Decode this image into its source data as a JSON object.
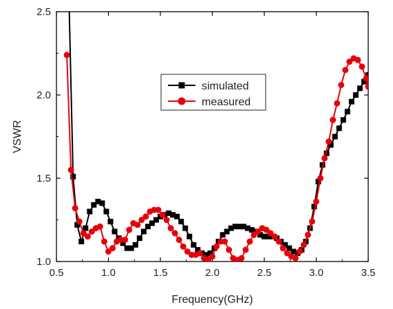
{
  "chart_data": {
    "type": "line",
    "xlabel": "Frequency(GHz)",
    "ylabel": "VSWR",
    "xlim": [
      0.5,
      3.5
    ],
    "ylim": [
      1.0,
      2.5
    ],
    "x_ticks": [
      "0.5",
      "1.0",
      "1.5",
      "2.0",
      "2.5",
      "3.0",
      "3.5"
    ],
    "x_tick_values": [
      0.5,
      1.0,
      1.5,
      2.0,
      2.5,
      3.0,
      3.5
    ],
    "y_ticks": [
      "1.0",
      "1.5",
      "2.0",
      "2.5"
    ],
    "y_tick_values": [
      1.0,
      1.5,
      2.0,
      2.5
    ],
    "grid": false,
    "legend_position": "top-center",
    "series": [
      {
        "name": "simulated",
        "color": "#000000",
        "marker": "square",
        "x": [
          0.62,
          0.66,
          0.7,
          0.74,
          0.78,
          0.82,
          0.86,
          0.9,
          0.94,
          0.98,
          1.02,
          1.06,
          1.1,
          1.14,
          1.18,
          1.22,
          1.26,
          1.3,
          1.34,
          1.38,
          1.42,
          1.46,
          1.5,
          1.54,
          1.58,
          1.62,
          1.66,
          1.7,
          1.74,
          1.78,
          1.82,
          1.86,
          1.9,
          1.94,
          1.98,
          2.02,
          2.06,
          2.1,
          2.14,
          2.18,
          2.22,
          2.26,
          2.3,
          2.34,
          2.38,
          2.42,
          2.46,
          2.5,
          2.54,
          2.58,
          2.62,
          2.66,
          2.7,
          2.74,
          2.78,
          2.82,
          2.86,
          2.9,
          2.94,
          2.98,
          3.02,
          3.06,
          3.1,
          3.14,
          3.18,
          3.22,
          3.26,
          3.3,
          3.34,
          3.38,
          3.42,
          3.46,
          3.5
        ],
        "y": [
          2.6,
          1.51,
          1.22,
          1.12,
          1.2,
          1.3,
          1.34,
          1.36,
          1.35,
          1.3,
          1.24,
          1.18,
          1.14,
          1.11,
          1.08,
          1.08,
          1.1,
          1.14,
          1.18,
          1.21,
          1.23,
          1.25,
          1.27,
          1.28,
          1.29,
          1.28,
          1.27,
          1.24,
          1.2,
          1.15,
          1.1,
          1.07,
          1.05,
          1.04,
          1.05,
          1.08,
          1.12,
          1.16,
          1.18,
          1.2,
          1.21,
          1.21,
          1.21,
          1.2,
          1.19,
          1.18,
          1.16,
          1.15,
          1.15,
          1.15,
          1.14,
          1.12,
          1.1,
          1.08,
          1.06,
          1.05,
          1.07,
          1.12,
          1.2,
          1.33,
          1.48,
          1.58,
          1.65,
          1.7,
          1.75,
          1.8,
          1.85,
          1.9,
          1.96,
          2.0,
          2.04,
          2.08,
          2.12
        ]
      },
      {
        "name": "measured",
        "color": "#e8000b",
        "marker": "circle",
        "x": [
          0.6,
          0.64,
          0.68,
          0.72,
          0.76,
          0.8,
          0.84,
          0.88,
          0.92,
          0.96,
          1.0,
          1.04,
          1.08,
          1.12,
          1.16,
          1.2,
          1.24,
          1.28,
          1.32,
          1.36,
          1.4,
          1.44,
          1.48,
          1.52,
          1.56,
          1.6,
          1.64,
          1.68,
          1.72,
          1.76,
          1.8,
          1.84,
          1.88,
          1.92,
          1.96,
          2.0,
          2.04,
          2.08,
          2.12,
          2.16,
          2.2,
          2.24,
          2.28,
          2.32,
          2.36,
          2.4,
          2.44,
          2.48,
          2.52,
          2.56,
          2.6,
          2.64,
          2.68,
          2.72,
          2.76,
          2.8,
          2.84,
          2.88,
          2.92,
          2.96,
          3.0,
          3.04,
          3.08,
          3.12,
          3.16,
          3.2,
          3.24,
          3.28,
          3.32,
          3.36,
          3.4,
          3.44,
          3.48,
          3.5
        ],
        "y": [
          2.24,
          1.55,
          1.32,
          1.24,
          1.17,
          1.15,
          1.18,
          1.2,
          1.21,
          1.12,
          1.06,
          1.08,
          1.12,
          1.13,
          1.13,
          1.19,
          1.23,
          1.22,
          1.25,
          1.27,
          1.3,
          1.31,
          1.31,
          1.28,
          1.25,
          1.2,
          1.17,
          1.13,
          1.09,
          1.06,
          1.04,
          1.04,
          1.05,
          1.02,
          1.01,
          1.03,
          1.09,
          1.12,
          1.12,
          1.07,
          1.02,
          1.01,
          1.02,
          1.07,
          1.12,
          1.16,
          1.18,
          1.2,
          1.19,
          1.17,
          1.15,
          1.12,
          1.08,
          1.05,
          1.03,
          1.02,
          1.06,
          1.1,
          1.16,
          1.24,
          1.36,
          1.5,
          1.62,
          1.72,
          1.85,
          1.95,
          2.06,
          2.15,
          2.2,
          2.22,
          2.21,
          2.17,
          2.1,
          2.05
        ]
      }
    ]
  }
}
